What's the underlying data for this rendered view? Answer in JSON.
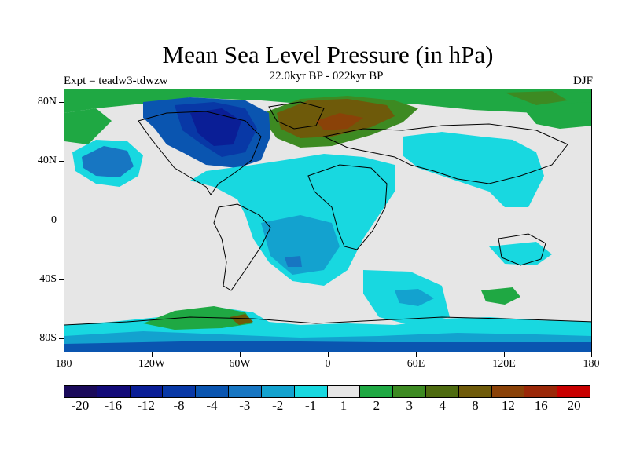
{
  "header": {
    "title": "Mean Sea Level Pressure (in hPa)",
    "left": "Expt = teadw3-tdwzw",
    "center": "22.0kyr BP - 022kyr BP",
    "right": "DJF"
  },
  "axes": {
    "lat_ticks": [
      "80N",
      "40N",
      "0",
      "40S",
      "80S"
    ],
    "lon_ticks": [
      "180",
      "120W",
      "60W",
      "0",
      "60E",
      "120E",
      "180"
    ]
  },
  "legend": {
    "colors": [
      "#1a0a5a",
      "#120a78",
      "#0a1e96",
      "#0838a6",
      "#0a55b0",
      "#1776c2",
      "#13a2cf",
      "#18d8e0",
      "#e6e6e6",
      "#1fa843",
      "#3d8a22",
      "#4e6b10",
      "#6e5a0a",
      "#8a4208",
      "#9a2808",
      "#c80000"
    ],
    "labels": [
      "-20",
      "-16",
      "-12",
      "-8",
      "-4",
      "-3",
      "-2",
      "-1",
      "1",
      "2",
      "3",
      "4",
      "8",
      "12",
      "16",
      "20"
    ]
  }
}
